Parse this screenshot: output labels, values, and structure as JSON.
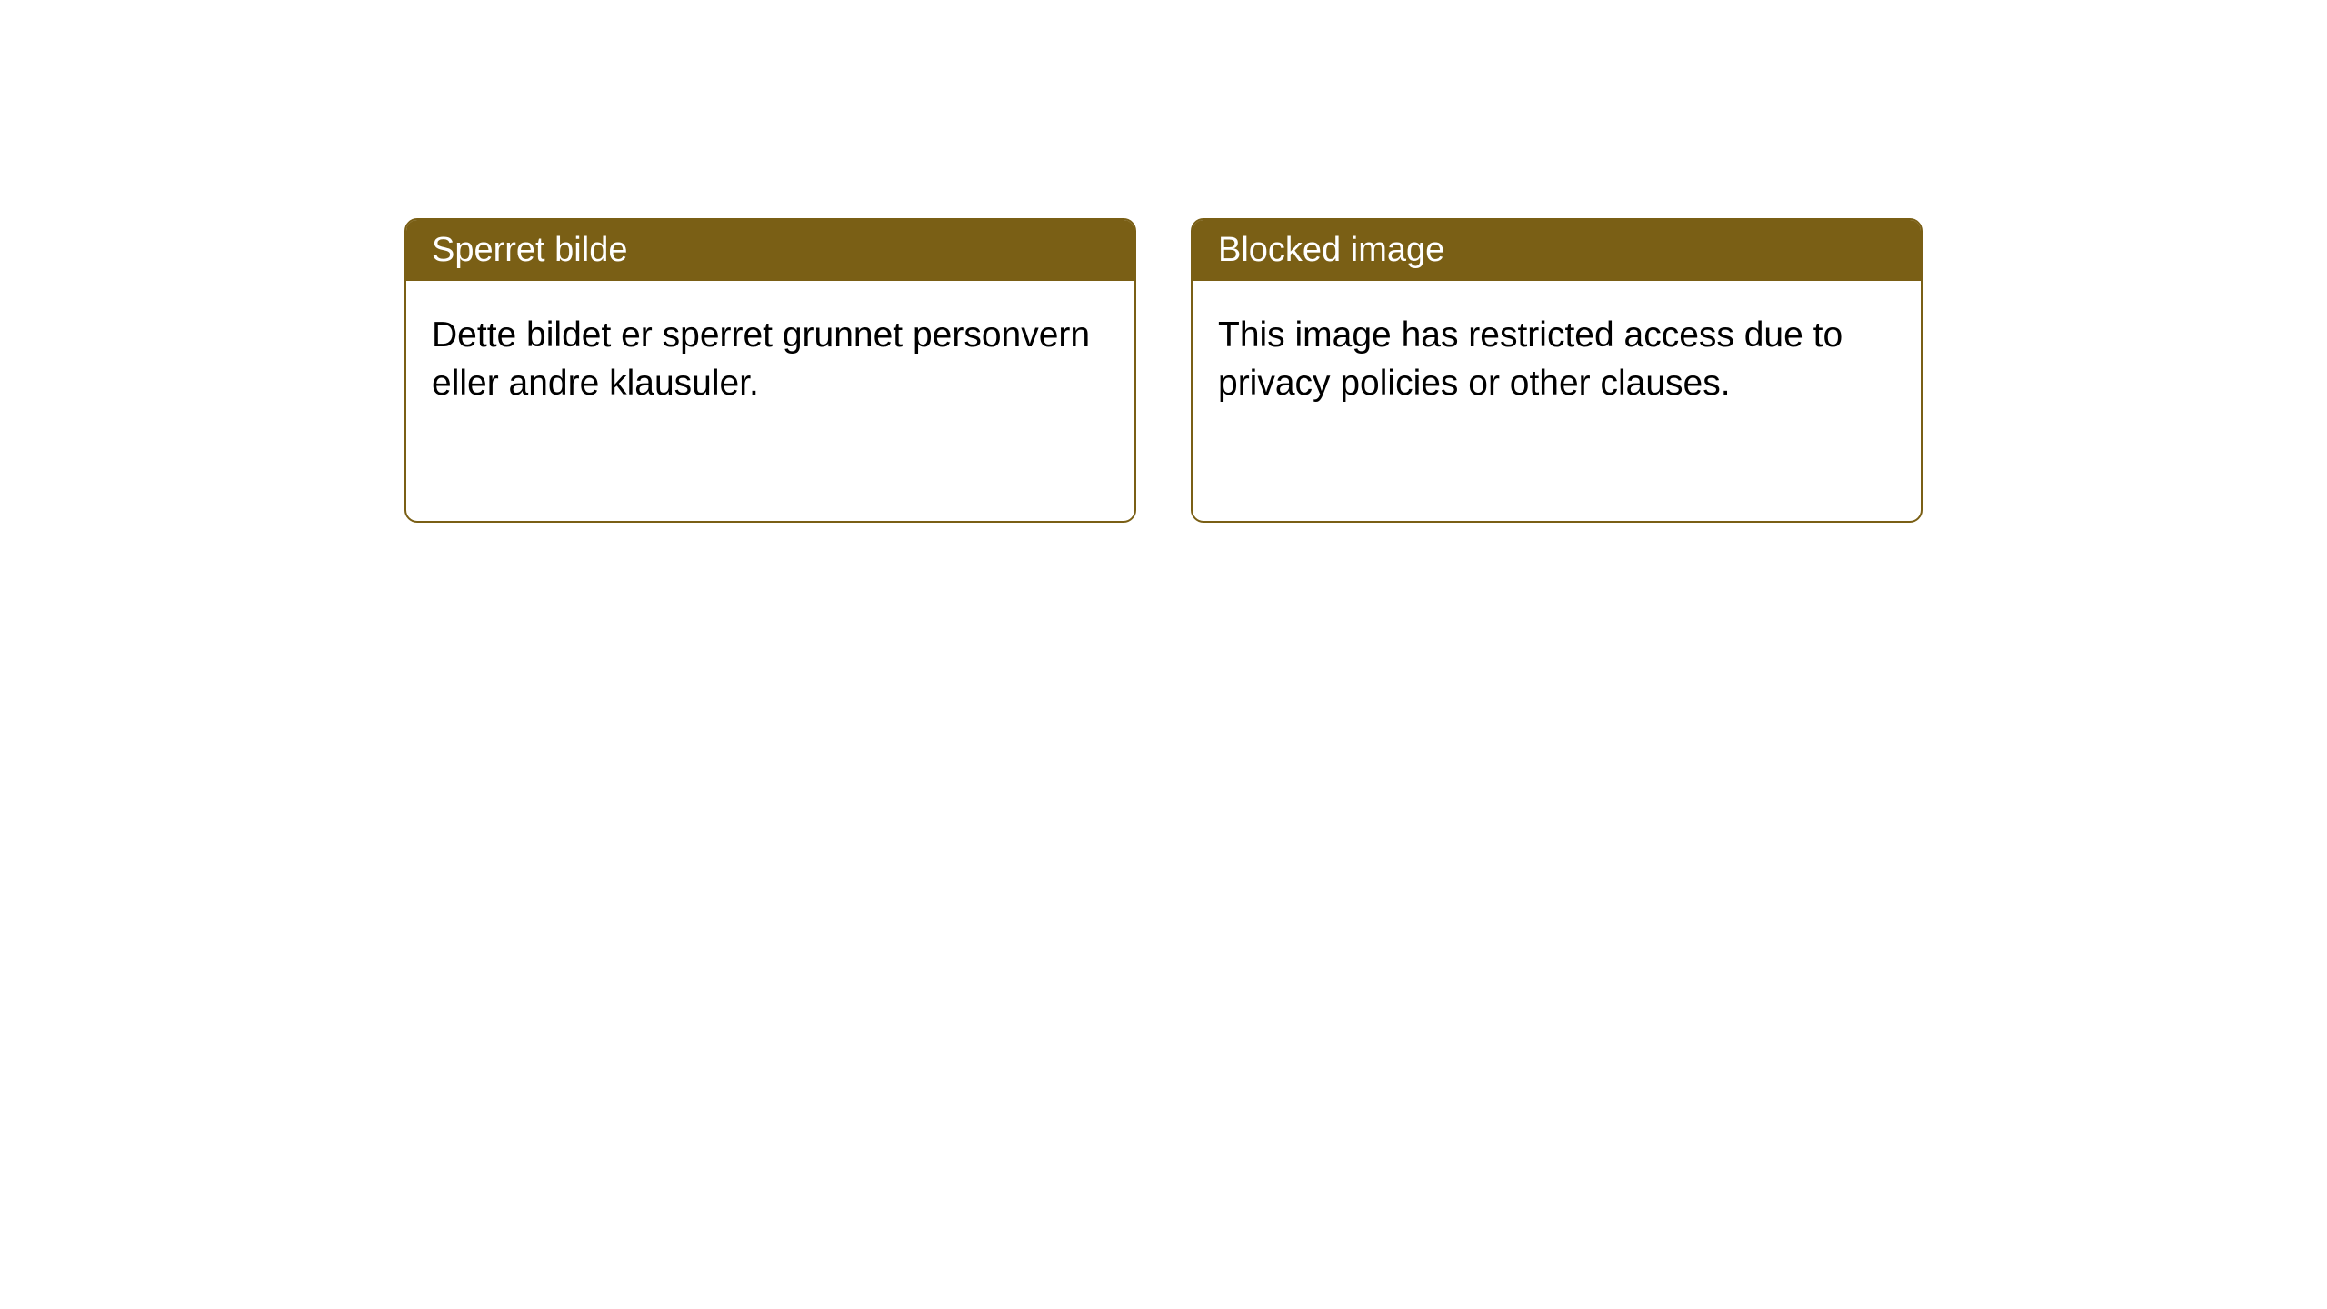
{
  "colors": {
    "border": "#7a5f15",
    "header_bg": "#7a5f15",
    "header_text": "#ffffff",
    "body_text": "#000000",
    "background": "#ffffff"
  },
  "cards": {
    "norwegian": {
      "title": "Sperret bilde",
      "body": "Dette bildet er sperret grunnet personvern eller andre klausuler."
    },
    "english": {
      "title": "Blocked image",
      "body": "This image has restricted access due to privacy policies or other clauses."
    }
  }
}
